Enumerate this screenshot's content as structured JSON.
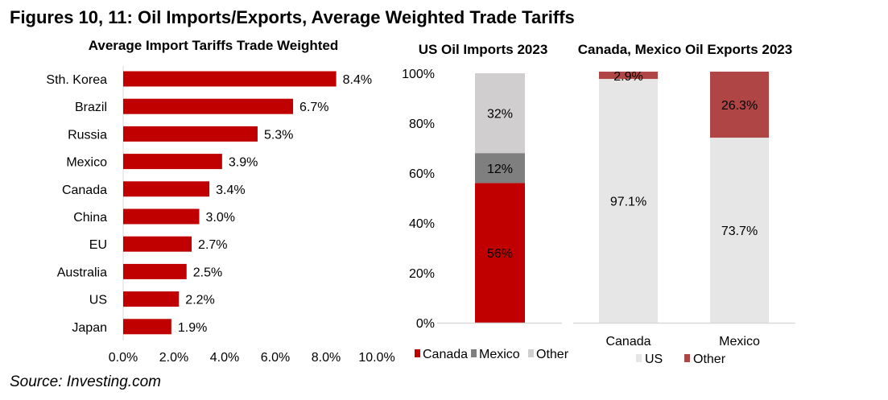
{
  "figure_title": "Figures 10, 11: Oil Imports/Exports, Average Weighted Trade Tariffs",
  "source": "Source: Investing.com",
  "chart_data": [
    {
      "type": "bar",
      "orientation": "horizontal",
      "title": "Average Import Tariffs Trade Weighted",
      "categories": [
        "Sth. Korea",
        "Brazil",
        "Russia",
        "Mexico",
        "Canada",
        "China",
        "EU",
        "Australia",
        "US",
        "Japan"
      ],
      "values": [
        8.4,
        6.7,
        5.3,
        3.9,
        3.4,
        3.0,
        2.7,
        2.5,
        2.2,
        1.9
      ],
      "data_labels": [
        "8.4%",
        "6.7%",
        "5.3%",
        "3.9%",
        "3.4%",
        "3.0%",
        "2.7%",
        "2.5%",
        "2.2%",
        "1.9%"
      ],
      "xlim": [
        0,
        10
      ],
      "xticks": [
        "0.0%",
        "2.0%",
        "4.0%",
        "6.0%",
        "8.0%",
        "10.0%"
      ],
      "color": "#C00000",
      "grid": false
    },
    {
      "type": "bar",
      "stacked": true,
      "title": "US Oil Imports 2023",
      "categories": [
        ""
      ],
      "series": [
        {
          "name": "Canada",
          "values": [
            56
          ],
          "labels": [
            "56%"
          ],
          "color": "#C00000"
        },
        {
          "name": "Mexico",
          "values": [
            12
          ],
          "labels": [
            "12%"
          ],
          "color": "#7F7F7F"
        },
        {
          "name": "Other",
          "values": [
            32
          ],
          "labels": [
            "32%"
          ],
          "color": "#D0CECE"
        }
      ],
      "ylim": [
        0,
        100
      ],
      "yticks": [
        "0%",
        "20%",
        "40%",
        "60%",
        "80%",
        "100%"
      ],
      "legend": "bottom",
      "grid": false
    },
    {
      "type": "bar",
      "stacked": true,
      "title": "Canada, Mexico Oil Exports 2023",
      "categories": [
        "Canada",
        "Mexico"
      ],
      "series": [
        {
          "name": "US",
          "values": [
            97.1,
            73.7
          ],
          "labels": [
            "97.1%",
            "73.7%"
          ],
          "color": "#E7E6E6"
        },
        {
          "name": "Other",
          "values": [
            2.9,
            26.3
          ],
          "labels": [
            "2.9%",
            "26.3%"
          ],
          "color": "#B04545"
        }
      ],
      "ylim": [
        0,
        100
      ],
      "legend": "bottom",
      "grid": false
    }
  ]
}
